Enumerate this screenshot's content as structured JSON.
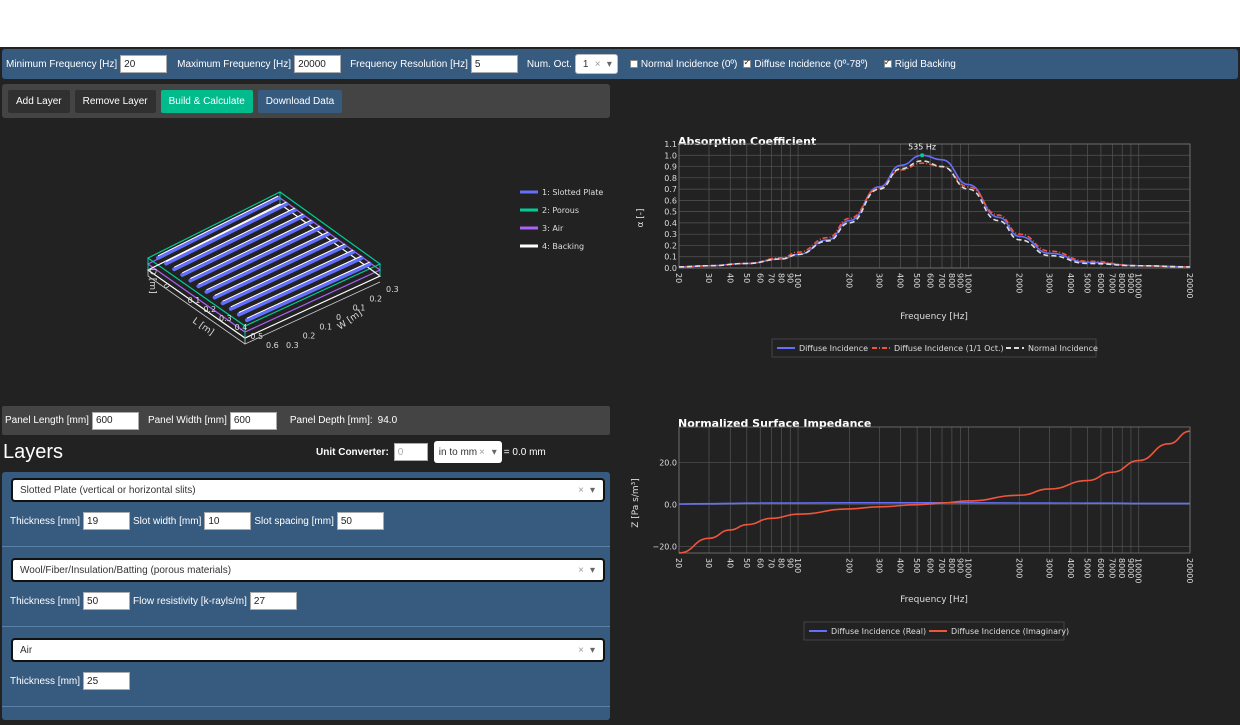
{
  "freq_bar": {
    "min_label": "Minimum Frequency [Hz]",
    "min_value": "20",
    "max_label": "Maximum Frequency [Hz]",
    "max_value": "20000",
    "res_label": "Frequency Resolution [Hz]",
    "res_value": "5",
    "oct_label": "Num. Oct.",
    "oct_value": "1",
    "oct_clear": "×",
    "oct_arrow": "▾",
    "normal_label": "Normal Incidence (0º)",
    "normal_checked": false,
    "diffuse_label": "Diffuse Incidence (0º-78º)",
    "diffuse_checked": true,
    "rigid_label": "Rigid Backing",
    "rigid_checked": true
  },
  "buttons": {
    "add": "Add Layer",
    "remove": "Remove Layer",
    "build": "Build & Calculate",
    "download": "Download Data"
  },
  "model3d": {
    "legend": [
      "1: Slotted Plate",
      "2: Porous",
      "3: Air",
      "4: Backing"
    ],
    "legend_colors": [
      "#636efa",
      "#00cc96",
      "#ab63fa",
      "#ffffff"
    ],
    "d_axis": "D [m]",
    "d_tick": "0",
    "l_axis": "L [m]",
    "l_ticks": [
      "0.1",
      "0.2",
      "0.3",
      "0.4",
      "0.5",
      "0.6"
    ],
    "w_axis": "W [m]",
    "w_ticks": [
      "0.3",
      "0.2",
      "0.1",
      "0",
      "0.1",
      "0.2",
      "0.3"
    ]
  },
  "panel": {
    "length_label": "Panel Length [mm]",
    "length_value": "600",
    "width_label": "Panel Width [mm]",
    "width_value": "600",
    "depth_label": "Panel Depth [mm]:",
    "depth_value": "94.0"
  },
  "layers": {
    "title": "Layers",
    "unit_label": "Unit Converter:",
    "unit_placeholder": "0",
    "unit_select": "in to mm",
    "unit_clear": "×",
    "unit_arrow": "▾",
    "unit_result": "= 0.0 mm",
    "items": [
      {
        "type": "Slotted Plate (vertical or horizontal slits)",
        "fields": [
          {
            "label": "Thickness [mm]",
            "value": "19"
          },
          {
            "label": "Slot width [mm]",
            "value": "10"
          },
          {
            "label": "Slot spacing [mm]",
            "value": "50"
          }
        ]
      },
      {
        "type": "Wool/Fiber/Insulation/Batting (porous materials)",
        "fields": [
          {
            "label": "Thickness [mm]",
            "value": "50"
          },
          {
            "label": "Flow resistivity [k-rayls/m]",
            "value": "27"
          }
        ]
      },
      {
        "type": "Air",
        "fields": [
          {
            "label": "Thickness [mm]",
            "value": "25"
          }
        ]
      }
    ],
    "clear": "×",
    "arrow": "▾"
  },
  "chart_data": [
    {
      "type": "line",
      "title": "Absorption Coefficient",
      "xlabel": "Frequency [Hz]",
      "ylabel": "α [-]",
      "xscale": "log",
      "xlim": [
        20,
        20000
      ],
      "ylim": [
        0,
        1.1
      ],
      "x_ticks": [
        "20",
        "30",
        "40",
        "50",
        "60",
        "70",
        "80",
        "90",
        "100",
        "200",
        "300",
        "400",
        "500",
        "600",
        "700",
        "800",
        "900",
        "1000",
        "2000",
        "3000",
        "4000",
        "5000",
        "6000",
        "7000",
        "8000",
        "9000",
        "10000",
        "20000"
      ],
      "y_ticks": [
        "0.0",
        "0.1",
        "0.2",
        "0.3",
        "0.4",
        "0.5",
        "0.6",
        "0.7",
        "0.8",
        "0.9",
        "1.0",
        "1.1"
      ],
      "annotation": "535 Hz",
      "annotation_x": 535,
      "annotation_y": 1.0,
      "legend_position": "bottom",
      "x": [
        20,
        30,
        50,
        80,
        100,
        150,
        200,
        300,
        400,
        535,
        700,
        1000,
        1500,
        2000,
        3000,
        5000,
        10000,
        20000
      ],
      "series": [
        {
          "name": "Diffuse Incidence",
          "color": "#636efa",
          "dash": "solid",
          "values": [
            0.01,
            0.02,
            0.04,
            0.08,
            0.12,
            0.25,
            0.42,
            0.72,
            0.91,
            1.0,
            0.96,
            0.74,
            0.45,
            0.28,
            0.13,
            0.05,
            0.02,
            0.01
          ]
        },
        {
          "name": "Diffuse Incidence (1/1 Oct.)",
          "color": "#ef553b",
          "dash": "dashdot",
          "values": [
            0.01,
            0.02,
            0.04,
            0.09,
            0.14,
            0.27,
            0.44,
            0.71,
            0.87,
            0.93,
            0.9,
            0.72,
            0.47,
            0.3,
            0.15,
            0.06,
            0.02,
            0.01
          ]
        },
        {
          "name": "Normal Incidence",
          "color": "#dddddd",
          "dash": "dash",
          "values": [
            0.01,
            0.02,
            0.04,
            0.08,
            0.12,
            0.24,
            0.4,
            0.7,
            0.88,
            0.95,
            0.9,
            0.7,
            0.42,
            0.25,
            0.11,
            0.04,
            0.02,
            0.01
          ]
        }
      ]
    },
    {
      "type": "line",
      "title": "Normalized Surface Impedance",
      "xlabel": "Frequency [Hz]",
      "ylabel": "Z [Pa s/m³]",
      "xscale": "log",
      "xlim": [
        20,
        20000
      ],
      "ylim": [
        -23,
        37
      ],
      "x_ticks": [
        "20",
        "30",
        "40",
        "50",
        "60",
        "70",
        "80",
        "90",
        "100",
        "200",
        "300",
        "400",
        "500",
        "600",
        "700",
        "800",
        "900",
        "1000",
        "2000",
        "3000",
        "4000",
        "5000",
        "6000",
        "7000",
        "8000",
        "9000",
        "10000",
        "20000"
      ],
      "y_ticks": [
        "−20.0",
        "0.0",
        "20.0"
      ],
      "legend_position": "bottom",
      "x": [
        20,
        30,
        40,
        50,
        70,
        100,
        200,
        300,
        500,
        700,
        1000,
        2000,
        3000,
        5000,
        7000,
        10000,
        15000,
        20000
      ],
      "series": [
        {
          "name": "Diffuse Incidence (Real)",
          "color": "#636efa",
          "dash": "solid",
          "values": [
            0.3,
            0.5,
            0.6,
            0.7,
            0.8,
            0.8,
            0.9,
            0.9,
            0.9,
            0.9,
            0.9,
            0.8,
            0.8,
            0.7,
            0.7,
            0.6,
            0.6,
            0.6
          ]
        },
        {
          "name": "Diffuse Incidence (Imaginary)",
          "color": "#ef553b",
          "dash": "solid",
          "values": [
            -23,
            -16,
            -12,
            -9.5,
            -6.5,
            -4.5,
            -2,
            -1,
            0,
            0.8,
            1.8,
            4.5,
            7.5,
            11.5,
            15.5,
            21,
            29,
            35
          ]
        }
      ]
    }
  ]
}
